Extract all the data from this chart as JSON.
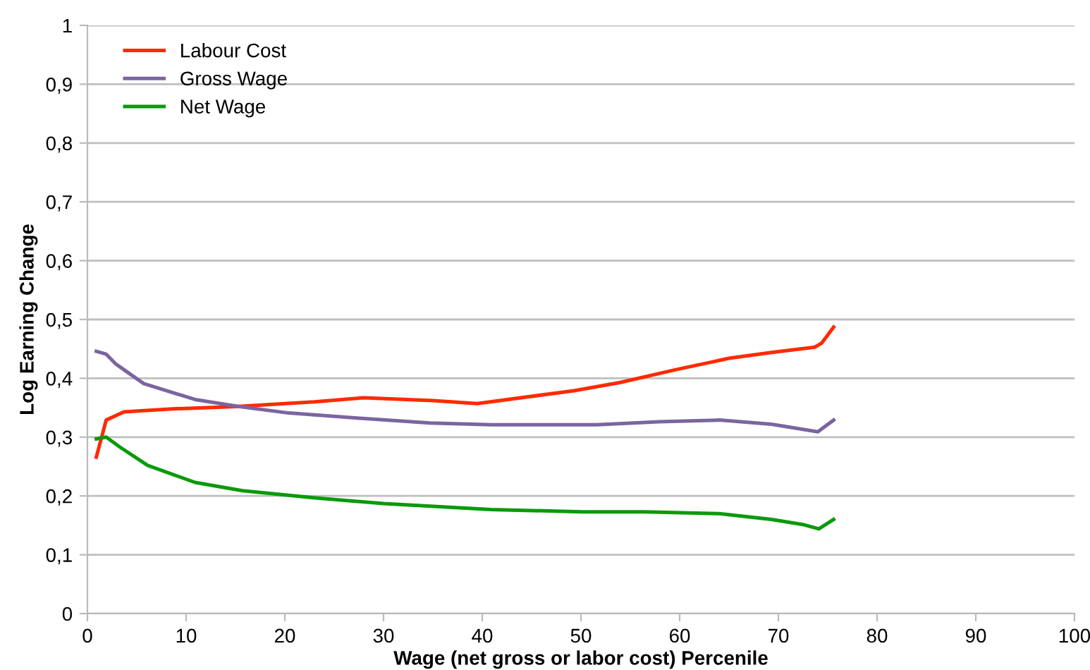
{
  "chart_data": {
    "type": "line",
    "xlabel": "Wage (net gross or labor cost) Percenile",
    "ylabel": "Log Earning Change",
    "xlim": [
      0,
      100
    ],
    "xticks": [
      0,
      10,
      20,
      30,
      40,
      50,
      60,
      70,
      80,
      90,
      100
    ],
    "ylim": [
      0,
      1
    ],
    "yticks": [
      0,
      {
        "value": 0.1,
        "label": "0,1"
      },
      {
        "value": 0.2,
        "label": "0,2"
      },
      {
        "value": 0.3,
        "label": "0,3"
      },
      {
        "value": 0.4,
        "label": "0,4"
      },
      {
        "value": 0.5,
        "label": "0,5"
      },
      {
        "value": 0.6,
        "label": "0,6"
      },
      {
        "value": 0.7,
        "label": "0,7"
      },
      {
        "value": 0.8,
        "label": "0,8"
      },
      {
        "value": 0.9,
        "label": "0,9"
      },
      1
    ],
    "grid": "y",
    "legend": "top left",
    "marker": "none",
    "line_style": "solid",
    "series": [
      {
        "name": "Labour Cost",
        "color": "#ff2a00",
        "x": [
          0.9,
          1.9,
          3.7,
          8.6,
          15,
          23,
          28,
          35,
          39.5,
          49.3,
          54,
          59.7,
          65,
          69.3,
          73.7,
          74.4,
          75.6
        ],
        "values": [
          0.266,
          0.329,
          0.343,
          0.348,
          0.352,
          0.36,
          0.367,
          0.362,
          0.357,
          0.379,
          0.393,
          0.415,
          0.434,
          0.444,
          0.453,
          0.46,
          0.487
        ]
      },
      {
        "name": "Gross Wage",
        "color": "#7a65a0",
        "x": [
          0.9,
          1.9,
          2.9,
          5.7,
          10.9,
          15.4,
          20.4,
          27.6,
          34.7,
          40.9,
          51.6,
          57.9,
          64,
          69.3,
          74,
          75.6
        ],
        "values": [
          0.446,
          0.441,
          0.424,
          0.391,
          0.364,
          0.352,
          0.341,
          0.332,
          0.324,
          0.321,
          0.321,
          0.326,
          0.329,
          0.322,
          0.309,
          0.329
        ]
      },
      {
        "name": "Net Wage",
        "color": "#0a9a0a",
        "x": [
          0.9,
          1.9,
          3.3,
          6.1,
          10.9,
          15.7,
          22.9,
          30,
          40.9,
          50.1,
          56.4,
          64,
          69.3,
          72.6,
          74.1,
          75.6
        ],
        "values": [
          0.297,
          0.3,
          0.283,
          0.252,
          0.223,
          0.209,
          0.197,
          0.187,
          0.177,
          0.173,
          0.173,
          0.17,
          0.16,
          0.151,
          0.144,
          0.16
        ]
      }
    ]
  }
}
